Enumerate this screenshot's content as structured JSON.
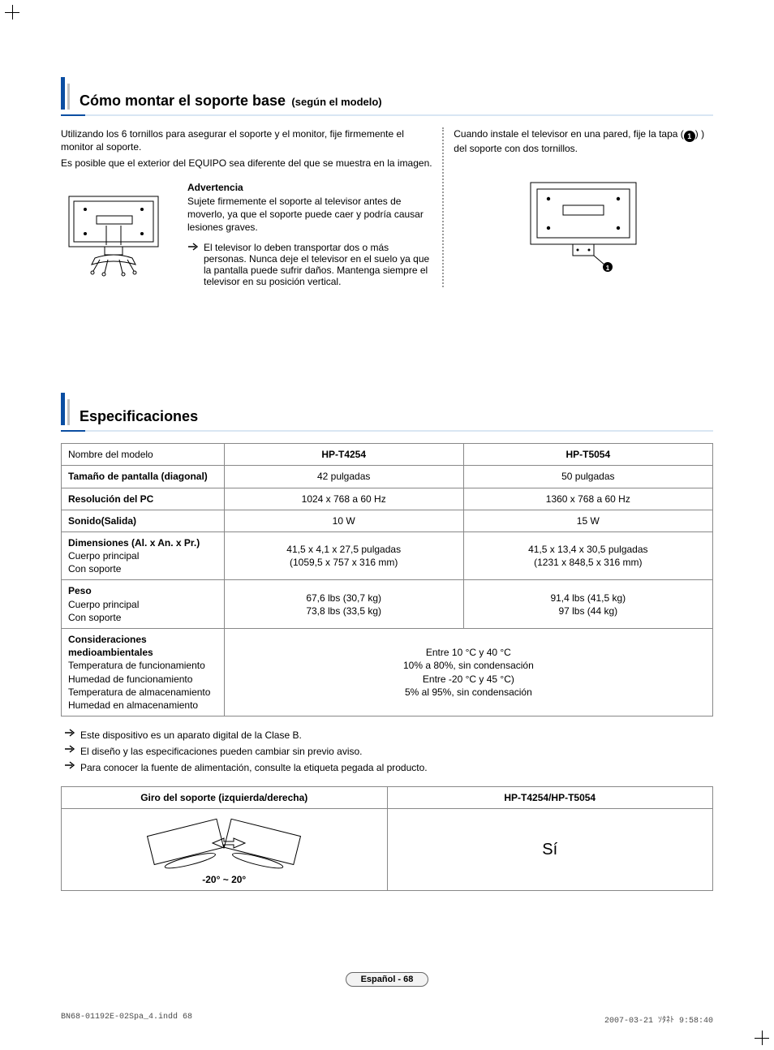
{
  "colors": {
    "blue": "#0b4ea2",
    "rule_light": "#d9e6f3",
    "gray_bar": "#c0c0c0",
    "border": "#888888",
    "pill_bg": "#f3f3f3",
    "dotted": "#999999"
  },
  "section1": {
    "title": "Cómo montar el soporte base",
    "subtitle": "(según el modelo)",
    "left_intro_1": "Utilizando los 6 tornillos para asegurar el soporte y el monitor, fije firmemente el monitor al soporte.",
    "left_intro_2": "Es posible que el exterior del EQUIPO sea diferente del que se muestra en la imagen.",
    "warning_head": "Advertencia",
    "warning_body": "Sujete firmemente el soporte al televisor antes de moverlo, ya que el soporte puede caer y podría causar lesiones graves.",
    "transport_note": "El televisor lo deben transportar dos o más personas. Nunca deje el televisor en el suelo ya que la pantalla puede sufrir daños. Mantenga siempre el televisor en su posición vertical.",
    "right_intro_a": "Cuando instale el televisor en una pared, fije la tapa (",
    "right_intro_b": ") ) del soporte con dos tornillos.",
    "circle_num": "1"
  },
  "section2": {
    "title": "Especificaciones",
    "table": {
      "model_label": "Nombre del modelo",
      "model_a": "HP-T4254",
      "model_b": "HP-T5054",
      "rows": [
        {
          "label_bold": "Tamaño de pantalla (diagonal)",
          "label_lines": [],
          "a": [
            "42 pulgadas"
          ],
          "b": [
            "50 pulgadas"
          ]
        },
        {
          "label_bold": "Resolución del PC",
          "label_lines": [],
          "a": [
            "1024 x 768 a 60 Hz"
          ],
          "b": [
            "1360 x 768 a 60 Hz"
          ]
        },
        {
          "label_bold": "Sonido(Salida)",
          "label_lines": [],
          "a": [
            "10 W"
          ],
          "b": [
            "15 W"
          ]
        },
        {
          "label_bold": "Dimensiones (Al. x An. x Pr.)",
          "label_lines": [
            "Cuerpo principal",
            "Con soporte"
          ],
          "a": [
            "41,5 x 4,1 x 27,5 pulgadas",
            "(1059,5 x 757 x 316 mm)"
          ],
          "b": [
            "41,5 x 13,4 x 30,5 pulgadas",
            "(1231 x 848,5 x 316 mm)"
          ]
        },
        {
          "label_bold": "Peso",
          "label_lines": [
            "Cuerpo principal",
            "Con soporte"
          ],
          "a": [
            "67,6 lbs (30,7 kg)",
            "73,8 lbs (33,5 kg)"
          ],
          "b": [
            "91,4 lbs (41,5 kg)",
            "97 lbs (44 kg)"
          ]
        }
      ],
      "env": {
        "label_bold": "Consideraciones medioambientales",
        "label_lines": [
          "Temperatura de funcionamiento",
          "Humedad de funcionamiento",
          "Temperatura de almacenamiento",
          "Humedad en almacenamiento"
        ],
        "merged_lines": [
          "Entre 10 °C y 40 °C",
          "10% a 80%, sin condensación",
          "Entre -20 °C y 45 °C)",
          "5% al 95%, sin condensación"
        ]
      }
    },
    "notes": [
      "Este dispositivo es un aparato digital de la Clase B.",
      "El diseño y las especificaciones pueden cambiar sin previo aviso.",
      "Para conocer la fuente de alimentación, consulte la etiqueta pegada al producto."
    ],
    "swivel": {
      "head_left": "Giro del soporte (izquierda/derecha)",
      "head_right": "HP-T4254/HP-T5054",
      "range": "-20° ~ 20°",
      "value": "Sí"
    }
  },
  "footer": {
    "page_label": "Español - 68",
    "file_stamp": "BN68-01192E-02Spa_4.indd   68",
    "time_stamp": "2007-03-21   ｿﾀﾈﾄ 9:58:40"
  }
}
